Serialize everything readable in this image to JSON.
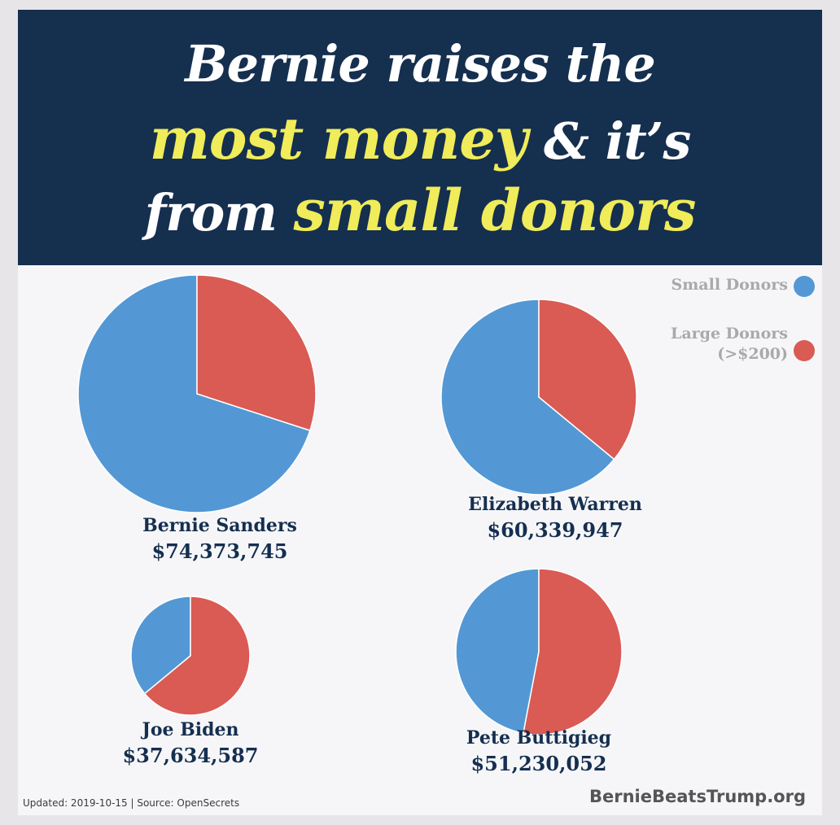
{
  "headline": {
    "line1": "Bernie raises the",
    "line2_highlight": "most money",
    "line2_rest": " & it’s",
    "line3_lead": "from ",
    "line3_highlight": "small donors"
  },
  "colors": {
    "banner": "#152f4f",
    "highlight": "#f0ec5a",
    "small_donors": "#5398d4",
    "large_donors": "#d95b54",
    "candidate_text": "#152f4f"
  },
  "legend": {
    "small_label": "Small Donors",
    "large_label_line1": "Large Donors",
    "large_label_line2": "(>$200)"
  },
  "chart_data": {
    "type": "pie",
    "title": "Bernie raises the most money & it’s from small donors",
    "series_names": [
      "Small Donors",
      "Large Donors (>$200)"
    ],
    "legend_position": "top-right",
    "pies": [
      {
        "name": "Bernie Sanders",
        "total": "$74,373,745",
        "total_value": 74373745,
        "small_share": 0.7,
        "large_share": 0.3
      },
      {
        "name": "Elizabeth Warren",
        "total": "$60,339,947",
        "total_value": 60339947,
        "small_share": 0.64,
        "large_share": 0.36
      },
      {
        "name": "Joe Biden",
        "total": "$37,634,587",
        "total_value": 37634587,
        "small_share": 0.36,
        "large_share": 0.64
      },
      {
        "name": "Pete Buttigieg",
        "total": "$51,230,052",
        "total_value": 51230052,
        "small_share": 0.47,
        "large_share": 0.53
      }
    ]
  },
  "footer": {
    "note": "Updated: 2019-10-15 | Source: OpenSecrets",
    "site": "BernieBeatsTrump.org"
  }
}
